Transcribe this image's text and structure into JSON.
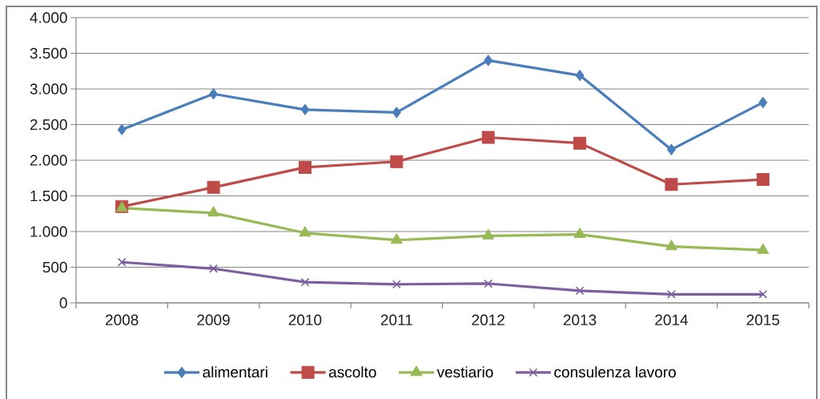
{
  "chart_data": {
    "type": "line",
    "categories": [
      "2008",
      "2009",
      "2010",
      "2011",
      "2012",
      "2013",
      "2014",
      "2015"
    ],
    "series": [
      {
        "name": "alimentari",
        "color": "#4a7ebb",
        "marker": "diamond",
        "values": [
          2430,
          2930,
          2710,
          2670,
          3400,
          3190,
          2150,
          2810
        ]
      },
      {
        "name": "ascolto",
        "color": "#be4b48",
        "marker": "square",
        "values": [
          1350,
          1620,
          1900,
          1980,
          2320,
          2240,
          1660,
          1730
        ]
      },
      {
        "name": "vestiario",
        "color": "#98b954",
        "marker": "triangle",
        "values": [
          1330,
          1260,
          980,
          880,
          940,
          960,
          790,
          740
        ]
      },
      {
        "name": "consulenza lavoro",
        "color": "#7d5fa0",
        "marker": "cross",
        "values": [
          570,
          480,
          290,
          260,
          270,
          170,
          120,
          120
        ]
      }
    ],
    "ylim": [
      0,
      4000
    ],
    "yticks": [
      0,
      500,
      {
        "value": 1000,
        "label": "1.000"
      },
      {
        "value": 1500,
        "label": "1.500"
      },
      {
        "value": 2000,
        "label": "2.000"
      },
      {
        "value": 2500,
        "label": "2.500"
      },
      {
        "value": 3000,
        "label": "3.000"
      },
      {
        "value": 3500,
        "label": "3.500"
      },
      {
        "value": 4000,
        "label": "4.000"
      }
    ],
    "grid": "y",
    "legend": "bottom",
    "line_style": "solid"
  }
}
